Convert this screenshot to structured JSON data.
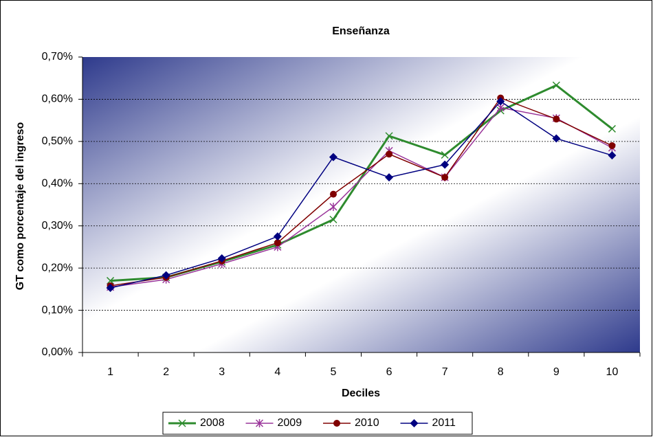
{
  "chart_data": {
    "type": "line",
    "title": "Enseñanza",
    "y_label": "GT como porcentaje del ingreso",
    "x_label": "Deciles",
    "categories": [
      "1",
      "2",
      "3",
      "4",
      "5",
      "6",
      "7",
      "8",
      "9",
      "10"
    ],
    "series": [
      {
        "name": "2008",
        "color": "#2e8b2e",
        "marker": "x",
        "values": [
          0.17,
          0.178,
          0.215,
          0.255,
          0.315,
          0.513,
          0.468,
          0.573,
          0.633,
          0.53
        ]
      },
      {
        "name": "2009",
        "color": "#993399",
        "marker": "asterisk",
        "values": [
          0.155,
          0.173,
          0.21,
          0.25,
          0.345,
          0.478,
          0.415,
          0.58,
          0.555,
          0.485
        ]
      },
      {
        "name": "2010",
        "color": "#800000",
        "marker": "circle",
        "values": [
          0.158,
          0.178,
          0.217,
          0.26,
          0.375,
          0.47,
          0.415,
          0.603,
          0.553,
          0.49
        ]
      },
      {
        "name": "2011",
        "color": "#000080",
        "marker": "diamond",
        "values": [
          0.153,
          0.183,
          0.223,
          0.275,
          0.463,
          0.415,
          0.445,
          0.595,
          0.507,
          0.467
        ]
      }
    ],
    "ylim": [
      0,
      0.7
    ],
    "yticks": [
      {
        "value": 0,
        "label": "0,00%"
      },
      {
        "value": 0.1,
        "label": "0,10%"
      },
      {
        "value": 0.2,
        "label": "0,20%"
      },
      {
        "value": 0.3,
        "label": "0,30%"
      },
      {
        "value": 0.4,
        "label": "0,40%"
      },
      {
        "value": 0.5,
        "label": "0,50%"
      },
      {
        "value": 0.6,
        "label": "0,60%"
      },
      {
        "value": 0.7,
        "label": "0,70%"
      }
    ],
    "grid": true,
    "legend": "bottom"
  }
}
